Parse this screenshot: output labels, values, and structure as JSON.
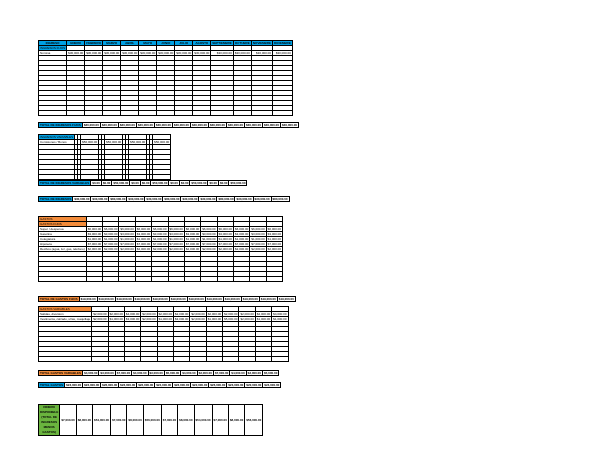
{
  "sheet": {
    "months": [
      "ENERO",
      "FEBRERO",
      "MARZO",
      "ABRIL",
      "MAYO",
      "JUNIO",
      "JULIO",
      "AGOSTO",
      "SEPTIEMBRE",
      "OCTUBRE",
      "NOVIEMBRE",
      "DICIEMBRE"
    ],
    "ingresos": {
      "header": "INGRESO",
      "fijos_label": "INGRESOS FIJOS",
      "fijos_rows": [
        {
          "label": "Nómina",
          "values": [
            "$30,000.00",
            "$30,000.00",
            "$30,000.00",
            "$30,000.00",
            "$30,000.00",
            "$30,000.00",
            "$30,000.00",
            "$30,000.00",
            "$30,000.00",
            "$30,000.00",
            "$30,000.00",
            "$30,000.00"
          ]
        }
      ],
      "fijos_total": {
        "label": "TOTAL DE INGRESOS FIJOS",
        "values": [
          "$30,000.00",
          "$30,000.00",
          "$30,000.00",
          "$30,000.00",
          "$30,000.00",
          "$30,000.00",
          "$30,000.00",
          "$30,000.00",
          "$30,000.00",
          "$30,000.00",
          "$30,000.00",
          "$30,000.00"
        ]
      },
      "variables_label": "INGRESOS VARIABLES",
      "variables_rows": [
        {
          "label": "Comisiones / Bonos",
          "values": [
            "",
            "",
            "$50,000.00",
            "",
            "",
            "$50,000.00",
            "",
            "",
            "$50,000.00",
            "",
            "",
            "$50,000.00"
          ]
        }
      ],
      "variables_total": {
        "label": "TOTAL DE INGRESOS VARIABLES",
        "values": [
          "$0.00",
          "$0.00",
          "$50,000.00",
          "$0.00",
          "$0.00",
          "$50,000.00",
          "$0.00",
          "$0.00",
          "$50,000.00",
          "$0.00",
          "$0.00",
          "$50,000.00"
        ]
      },
      "total": {
        "label": "TOTAL DE INGRESOS",
        "values": [
          "$30,000.00",
          "$30,000.00",
          "$80,000.00",
          "$30,000.00",
          "$30,000.00",
          "$80,000.00",
          "$30,000.00",
          "$30,000.00",
          "$80,000.00",
          "$30,000.00",
          "$30,000.00",
          "$80,000.00"
        ]
      }
    },
    "gastos": {
      "header": "GASTOS",
      "fijos_label": "GASTOS FIJOS",
      "fijos_rows": [
        {
          "label": "Super / despensa",
          "values": [
            "$6,000.00",
            "$6,000.00",
            "$6,000.00",
            "$6,000.00",
            "$6,000.00",
            "$6,000.00",
            "$6,000.00",
            "$6,000.00",
            "$6,000.00",
            "$6,000.00",
            "$6,000.00",
            "$6,000.00"
          ]
        },
        {
          "label": "Gasolina",
          "values": [
            "$3,000.00",
            "$3,000.00",
            "$3,000.00",
            "$3,000.00",
            "$3,000.00",
            "$3,000.00",
            "$3,000.00",
            "$3,000.00",
            "$3,000.00",
            "$3,000.00",
            "$3,000.00",
            "$3,000.00"
          ]
        },
        {
          "label": "Colegiatura",
          "values": [
            "$1,000.00",
            "$1,000.00",
            "$1,000.00",
            "$1,000.00",
            "$1,000.00",
            "$1,000.00",
            "$1,000.00",
            "$1,000.00",
            "$1,000.00",
            "$1,000.00",
            "$1,000.00",
            "$1,000.00"
          ]
        },
        {
          "label": "Hipoteca",
          "values": [
            "$7,000.00",
            "$7,000.00",
            "$7,000.00",
            "$7,000.00",
            "$7,000.00",
            "$7,000.00",
            "$7,000.00",
            "$7,000.00",
            "$7,000.00",
            "$7,000.00",
            "$7,000.00",
            "$7,000.00"
          ]
        },
        {
          "label": "Recibos (agua, luz, gas, teléfono)",
          "values": [
            "$2,000.00",
            "$2,000.00",
            "$2,000.00",
            "$2,000.00",
            "$2,000.00",
            "$2,000.00",
            "$2,000.00",
            "$2,000.00",
            "$2,000.00",
            "$2,000.00",
            "$2,000.00",
            "$2,000.00"
          ]
        }
      ],
      "fijos_total": {
        "label": "TOTAL DE GASTOS FIJOS",
        "values": [
          "$19,000.00",
          "$19,000.00",
          "$19,000.00",
          "$19,000.00",
          "$19,000.00",
          "$19,000.00",
          "$19,000.00",
          "$19,000.00",
          "$19,000.00",
          "$19,000.00",
          "$19,000.00",
          "$19,000.00"
        ]
      },
      "variables_label": "GASTOS VARIABLES",
      "variables_rows": [
        {
          "label": "Salidas, diversión",
          "values": [
            "$2,000.00",
            "$2,000.00",
            "$4,000.00",
            "$2,000.00",
            "$2,000.00",
            "$2,000.00",
            "$2,000.00",
            "$2,000.00",
            "$2,000.00",
            "$2,000.00",
            "$2,000.00",
            "$4,000.00"
          ]
        },
        {
          "label": "Vestimenta, calzado, uñas, maquillaje",
          "values": [
            "$2,000.00",
            "$1,000.00",
            "$3,000.00",
            "$2,000.00",
            "$1,000.00",
            "$3,000.00",
            "$2,000.00",
            "$1,000.00",
            "$5,000.00",
            "$2,000.00",
            "$1,000.00",
            "$1,000.00"
          ]
        }
      ],
      "variables_total": {
        "label": "TOTAL GASTOS VARIABLES",
        "values": [
          "$4,000.00",
          "$3,000.00",
          "$7,000.00",
          "$4,000.00",
          "$3,000.00",
          "$5,000.00",
          "$4,000.00",
          "$3,000.00",
          "$7,000.00",
          "$4,000.00",
          "$3,000.00",
          "$5,000.00"
        ]
      },
      "total": {
        "label": "TOTAL GASTOS",
        "values": [
          "$23,000.00",
          "$22,000.00",
          "$26,000.00",
          "$23,000.00",
          "$22,000.00",
          "$24,000.00",
          "$23,000.00",
          "$22,000.00",
          "$26,000.00",
          "$23,000.00",
          "$22,000.00",
          "$24,000.00"
        ]
      }
    },
    "disponible": {
      "label": "DINERO DISPONIBLE (TOTAL DE INGRESOS MENOS GASTOS)",
      "values": [
        "$7,000.00",
        "$8,000.00",
        "$54,000.00",
        "$7,000.00",
        "$8,000.00",
        "$56,000.00",
        "$7,000.00",
        "$8,000.00",
        "$54,000.00",
        "$7,000.00",
        "$8,000.00",
        "$56,000.00"
      ]
    }
  },
  "colors": {
    "ingresos": "#00a0e3",
    "gastos": "#f28b3a",
    "disponible": "#6ab43e"
  }
}
